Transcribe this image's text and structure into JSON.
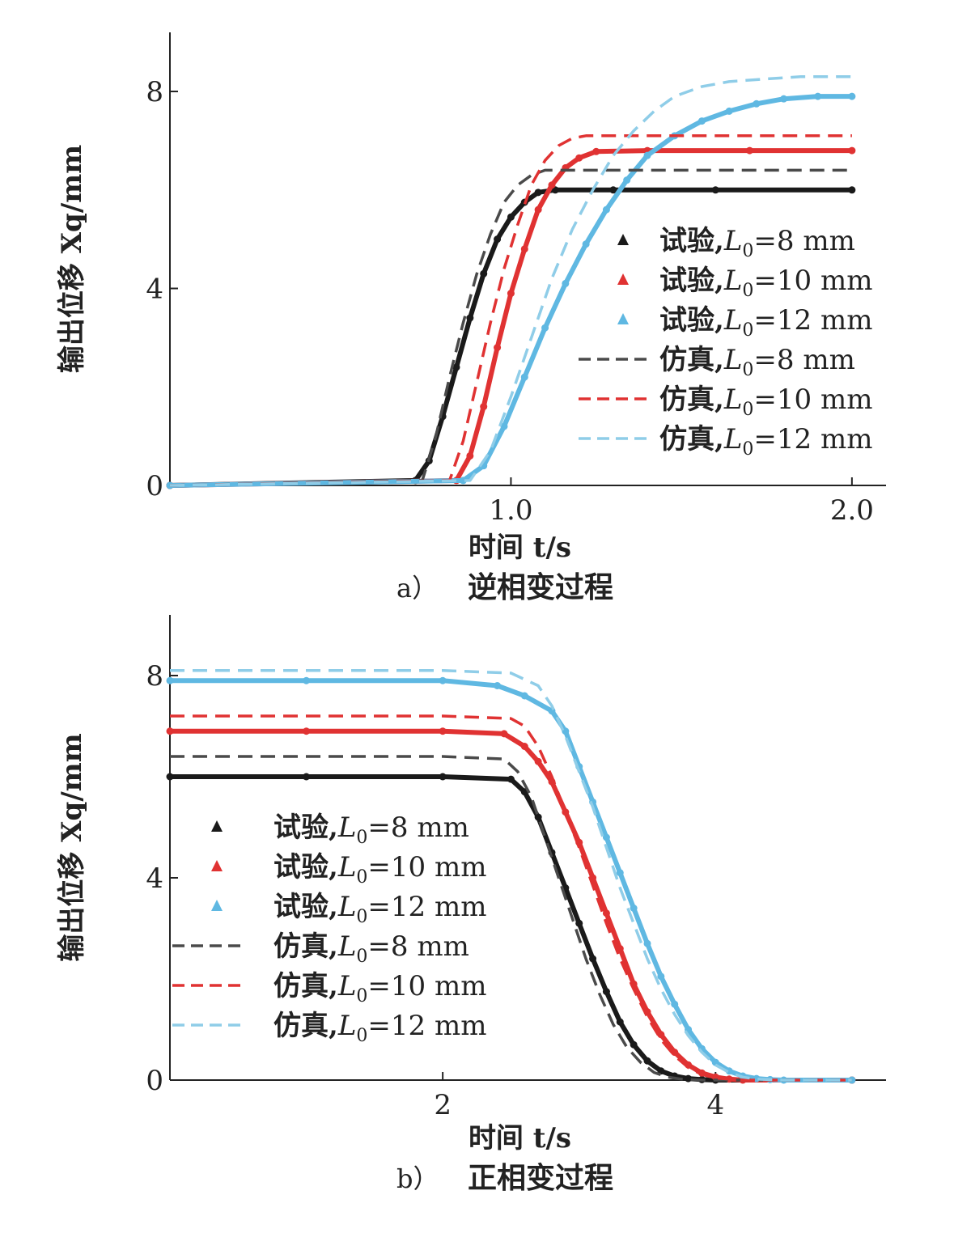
{
  "chart_data": [
    {
      "panel_id": "a",
      "type": "line",
      "caption_label": "a）",
      "caption_text": "逆相变过程",
      "xlabel": "时间 t/s",
      "ylabel": "输出位移 Xq/mm",
      "xlim": [
        0,
        2.1
      ],
      "ylim": [
        0,
        9.2
      ],
      "xticks": [
        1.0,
        2.0
      ],
      "xtick_labels": [
        "1.0",
        "2.0"
      ],
      "yticks": [
        0,
        4,
        8
      ],
      "ytick_labels": [
        "0",
        "4",
        "8"
      ],
      "legend_position": "center-right",
      "series": [
        {
          "name": "试验, L0=8 mm",
          "legend_prefix": "试验,",
          "legend_value": "=8 mm",
          "style": "experiment",
          "color": "#1a1a1a",
          "x": [
            0,
            0.72,
            0.76,
            0.8,
            0.84,
            0.88,
            0.92,
            0.96,
            1.0,
            1.04,
            1.08,
            1.13,
            1.3,
            1.6,
            2.0
          ],
          "y": [
            0,
            0.1,
            0.5,
            1.4,
            2.4,
            3.4,
            4.3,
            5.0,
            5.45,
            5.75,
            5.95,
            6.0,
            6.0,
            6.0,
            6.0
          ]
        },
        {
          "name": "试验, L0=10 mm",
          "legend_prefix": "试验,",
          "legend_value": "=10 mm",
          "style": "experiment",
          "color": "#e03232",
          "x": [
            0,
            0.84,
            0.88,
            0.92,
            0.96,
            1.0,
            1.04,
            1.08,
            1.12,
            1.16,
            1.2,
            1.25,
            1.4,
            1.7,
            2.0
          ],
          "y": [
            0,
            0.1,
            0.6,
            1.6,
            2.8,
            3.9,
            4.8,
            5.6,
            6.1,
            6.45,
            6.65,
            6.78,
            6.8,
            6.8,
            6.8
          ]
        },
        {
          "name": "试验, L0=12 mm",
          "legend_prefix": "试验,",
          "legend_value": "=12 mm",
          "style": "experiment",
          "color": "#5fb8e2",
          "x": [
            0,
            0.86,
            0.92,
            0.98,
            1.04,
            1.1,
            1.16,
            1.22,
            1.28,
            1.34,
            1.4,
            1.48,
            1.56,
            1.64,
            1.72,
            1.8,
            1.9,
            2.0
          ],
          "y": [
            0,
            0.1,
            0.4,
            1.2,
            2.2,
            3.2,
            4.1,
            4.9,
            5.6,
            6.2,
            6.7,
            7.1,
            7.4,
            7.6,
            7.75,
            7.85,
            7.9,
            7.9
          ]
        },
        {
          "name": "仿真, L0=8 mm",
          "legend_prefix": "仿真,",
          "legend_value": "=8 mm",
          "style": "simulation",
          "color": "#4a4a4a",
          "x": [
            0,
            0.74,
            0.78,
            0.82,
            0.86,
            0.9,
            0.94,
            0.98,
            1.02,
            1.06,
            1.1,
            1.3,
            1.6,
            2.0
          ],
          "y": [
            0,
            0.1,
            1.0,
            2.2,
            3.3,
            4.3,
            5.1,
            5.75,
            6.1,
            6.3,
            6.4,
            6.4,
            6.4,
            6.4
          ]
        },
        {
          "name": "仿真, L0=10 mm",
          "legend_prefix": "仿真,",
          "legend_value": "=10 mm",
          "style": "simulation",
          "color": "#e03232",
          "x": [
            0,
            0.82,
            0.86,
            0.9,
            0.94,
            0.98,
            1.02,
            1.06,
            1.1,
            1.14,
            1.18,
            1.22,
            1.5,
            2.0
          ],
          "y": [
            0,
            0.1,
            0.9,
            2.1,
            3.3,
            4.4,
            5.3,
            6.1,
            6.6,
            6.9,
            7.05,
            7.1,
            7.1,
            7.1
          ]
        },
        {
          "name": "仿真, L0=12 mm",
          "legend_prefix": "仿真,",
          "legend_value": "=12 mm",
          "style": "simulation",
          "color": "#8fcde8",
          "x": [
            0,
            0.88,
            0.94,
            1.0,
            1.06,
            1.12,
            1.18,
            1.24,
            1.3,
            1.36,
            1.42,
            1.48,
            1.56,
            1.64,
            1.74,
            1.85,
            2.0
          ],
          "y": [
            0,
            0.1,
            0.7,
            1.8,
            3.0,
            4.2,
            5.2,
            6.0,
            6.7,
            7.2,
            7.6,
            7.9,
            8.1,
            8.2,
            8.25,
            8.3,
            8.3
          ]
        }
      ]
    },
    {
      "panel_id": "b",
      "type": "line",
      "caption_label": "b）",
      "caption_text": "正相变过程",
      "xlabel": "时间 t/s",
      "ylabel": "输出位移 Xq/mm",
      "xlim": [
        0,
        5.25
      ],
      "ylim": [
        0,
        9.2
      ],
      "xticks": [
        2,
        4
      ],
      "xtick_labels": [
        "2",
        "4"
      ],
      "yticks": [
        0,
        4,
        8
      ],
      "ytick_labels": [
        "0",
        "4",
        "8"
      ],
      "legend_position": "center-left",
      "series": [
        {
          "name": "试验, L0=8 mm",
          "legend_prefix": "试验,",
          "legend_value": "=8 mm",
          "style": "experiment",
          "color": "#1a1a1a",
          "x": [
            0,
            1.0,
            2.0,
            2.5,
            2.6,
            2.7,
            2.8,
            2.9,
            3.0,
            3.1,
            3.2,
            3.3,
            3.4,
            3.5,
            3.6,
            3.7,
            3.8,
            3.9,
            4.0,
            5.0
          ],
          "y": [
            6.0,
            6.0,
            6.0,
            5.95,
            5.7,
            5.2,
            4.5,
            3.8,
            3.1,
            2.4,
            1.75,
            1.15,
            0.7,
            0.38,
            0.18,
            0.08,
            0.03,
            0.01,
            0,
            0
          ]
        },
        {
          "name": "试验, L0=10 mm",
          "legend_prefix": "试验,",
          "legend_value": "=10 mm",
          "style": "experiment",
          "color": "#e03232",
          "x": [
            0,
            1.0,
            2.0,
            2.45,
            2.6,
            2.7,
            2.8,
            2.9,
            3.0,
            3.1,
            3.2,
            3.3,
            3.4,
            3.5,
            3.6,
            3.7,
            3.8,
            3.9,
            4.0,
            4.1,
            4.2,
            5.0
          ],
          "y": [
            6.9,
            6.9,
            6.9,
            6.85,
            6.6,
            6.3,
            5.9,
            5.3,
            4.7,
            4.0,
            3.3,
            2.6,
            1.9,
            1.35,
            0.9,
            0.55,
            0.3,
            0.14,
            0.06,
            0.02,
            0,
            0
          ]
        },
        {
          "name": "试验, L0=12 mm",
          "legend_prefix": "试验,",
          "legend_value": "=12 mm",
          "style": "experiment",
          "color": "#5fb8e2",
          "x": [
            0,
            1.0,
            2.0,
            2.4,
            2.6,
            2.8,
            2.9,
            3.0,
            3.1,
            3.2,
            3.3,
            3.4,
            3.5,
            3.6,
            3.7,
            3.8,
            3.9,
            4.0,
            4.1,
            4.2,
            4.3,
            4.4,
            4.5,
            5.0
          ],
          "y": [
            7.9,
            7.9,
            7.9,
            7.8,
            7.6,
            7.3,
            6.9,
            6.2,
            5.5,
            4.8,
            4.1,
            3.4,
            2.7,
            2.05,
            1.5,
            1.0,
            0.62,
            0.35,
            0.18,
            0.08,
            0.03,
            0.01,
            0,
            0
          ]
        },
        {
          "name": "仿真, L0=8 mm",
          "legend_prefix": "仿真,",
          "legend_value": "=8 mm",
          "style": "simulation",
          "color": "#4a4a4a",
          "x": [
            0,
            1.0,
            2.0,
            2.45,
            2.55,
            2.65,
            2.75,
            2.85,
            2.95,
            3.05,
            3.15,
            3.25,
            3.35,
            3.45,
            3.55,
            3.65,
            3.75,
            3.9,
            5.0
          ],
          "y": [
            6.4,
            6.4,
            6.4,
            6.35,
            6.1,
            5.6,
            4.8,
            4.0,
            3.2,
            2.4,
            1.7,
            1.1,
            0.65,
            0.35,
            0.15,
            0.06,
            0.02,
            0,
            0
          ]
        },
        {
          "name": "仿真, L0=10 mm",
          "legend_prefix": "仿真,",
          "legend_value": "=10 mm",
          "style": "simulation",
          "color": "#e03232",
          "x": [
            0,
            1.0,
            2.0,
            2.5,
            2.6,
            2.7,
            2.8,
            2.9,
            3.0,
            3.1,
            3.2,
            3.3,
            3.4,
            3.5,
            3.6,
            3.7,
            3.8,
            3.9,
            4.0,
            4.2,
            5.0
          ],
          "y": [
            7.2,
            7.2,
            7.2,
            7.15,
            7.0,
            6.6,
            6.0,
            5.3,
            4.6,
            3.85,
            3.1,
            2.4,
            1.8,
            1.25,
            0.8,
            0.48,
            0.25,
            0.11,
            0.04,
            0,
            0
          ]
        },
        {
          "name": "仿真, L0=12 mm",
          "legend_prefix": "仿真,",
          "legend_value": "=12 mm",
          "style": "simulation",
          "color": "#8fcde8",
          "x": [
            0,
            1.0,
            2.0,
            2.5,
            2.7,
            2.8,
            2.9,
            3.0,
            3.1,
            3.2,
            3.3,
            3.4,
            3.5,
            3.6,
            3.7,
            3.8,
            3.9,
            4.0,
            4.1,
            4.2,
            4.3,
            4.5,
            5.0
          ],
          "y": [
            8.1,
            8.1,
            8.1,
            8.05,
            7.8,
            7.4,
            6.8,
            6.1,
            5.4,
            4.6,
            3.8,
            3.1,
            2.4,
            1.8,
            1.3,
            0.88,
            0.55,
            0.3,
            0.15,
            0.06,
            0.02,
            0,
            0
          ]
        }
      ]
    }
  ]
}
